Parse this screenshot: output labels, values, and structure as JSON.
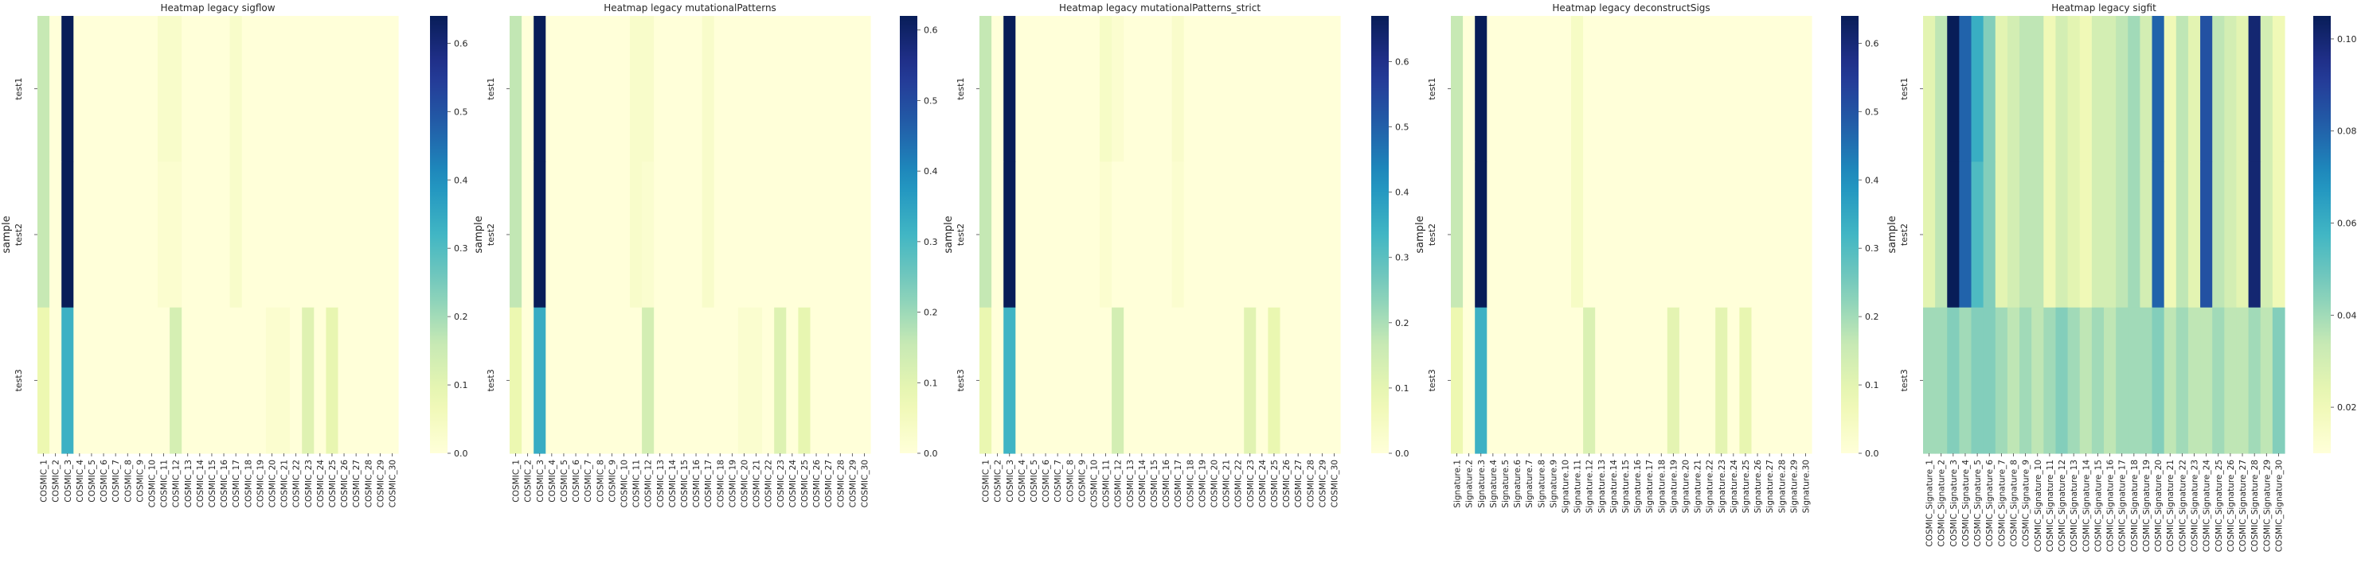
{
  "ylabel": "sample",
  "samples": [
    "test1",
    "test2",
    "test3"
  ],
  "colormap": {
    "name": "YlGnBu",
    "stops": [
      "#ffffd9",
      "#edf8b1",
      "#c7e9b4",
      "#7fcdbb",
      "#41b6c4",
      "#1d91c0",
      "#225ea8",
      "#253494",
      "#081d58"
    ]
  },
  "chart_data": [
    {
      "type": "heatmap",
      "title": "Heatmap legacy sigflow",
      "ylabel": "sample",
      "categories": [
        "COSMIC_1",
        "COSMIC_2",
        "COSMIC_3",
        "COSMIC_4",
        "COSMIC_5",
        "COSMIC_6",
        "COSMIC_7",
        "COSMIC_8",
        "COSMIC_9",
        "COSMIC_10",
        "COSMIC_11",
        "COSMIC_12",
        "COSMIC_13",
        "COSMIC_14",
        "COSMIC_15",
        "COSMIC_16",
        "COSMIC_17",
        "COSMIC_18",
        "COSMIC_19",
        "COSMIC_20",
        "COSMIC_21",
        "COSMIC_22",
        "COSMIC_23",
        "COSMIC_24",
        "COSMIC_25",
        "COSMIC_26",
        "COSMIC_27",
        "COSMIC_28",
        "COSMIC_29",
        "COSMIC_30"
      ],
      "rows": [
        "test1",
        "test2",
        "test3"
      ],
      "values": [
        [
          0.16,
          0,
          0.64,
          0,
          0,
          0,
          0,
          0,
          0,
          0,
          0.03,
          0.03,
          0,
          0,
          0,
          0,
          0.03,
          0,
          0,
          0,
          0,
          0,
          0,
          0,
          0,
          0,
          0,
          0,
          0,
          0
        ],
        [
          0.16,
          0,
          0.64,
          0,
          0,
          0,
          0,
          0,
          0,
          0,
          0.02,
          0.02,
          0,
          0,
          0,
          0,
          0.03,
          0,
          0,
          0,
          0,
          0,
          0,
          0,
          0,
          0,
          0,
          0,
          0,
          0
        ],
        [
          0.08,
          0,
          0.33,
          0,
          0,
          0,
          0,
          0,
          0,
          0,
          0,
          0.13,
          0,
          0,
          0,
          0,
          0,
          0,
          0,
          0.02,
          0.02,
          0,
          0.11,
          0,
          0.09,
          0,
          0,
          0,
          0,
          0
        ]
      ],
      "colorbar": {
        "min": 0,
        "max": 0.64,
        "ticks": [
          "0.0",
          "0.1",
          "0.2",
          "0.3",
          "0.4",
          "0.5",
          "0.6"
        ]
      }
    },
    {
      "type": "heatmap",
      "title": "Heatmap legacy mutationalPatterns",
      "ylabel": "sample",
      "categories": [
        "COSMIC_1",
        "COSMIC_2",
        "COSMIC_3",
        "COSMIC_4",
        "COSMIC_5",
        "COSMIC_6",
        "COSMIC_7",
        "COSMIC_8",
        "COSMIC_9",
        "COSMIC_10",
        "COSMIC_11",
        "COSMIC_12",
        "COSMIC_13",
        "COSMIC_14",
        "COSMIC_15",
        "COSMIC_16",
        "COSMIC_17",
        "COSMIC_18",
        "COSMIC_19",
        "COSMIC_20",
        "COSMIC_21",
        "COSMIC_22",
        "COSMIC_23",
        "COSMIC_24",
        "COSMIC_25",
        "COSMIC_26",
        "COSMIC_27",
        "COSMIC_28",
        "COSMIC_29",
        "COSMIC_30"
      ],
      "rows": [
        "test1",
        "test2",
        "test3"
      ],
      "values": [
        [
          0.16,
          0,
          0.62,
          0,
          0,
          0,
          0,
          0,
          0,
          0,
          0.03,
          0.03,
          0,
          0,
          0,
          0,
          0.03,
          0,
          0,
          0,
          0,
          0,
          0,
          0,
          0,
          0,
          0,
          0,
          0,
          0
        ],
        [
          0.16,
          0,
          0.62,
          0,
          0,
          0,
          0,
          0,
          0,
          0,
          0.03,
          0.02,
          0,
          0,
          0,
          0,
          0.03,
          0,
          0,
          0,
          0,
          0,
          0,
          0,
          0,
          0,
          0,
          0,
          0,
          0
        ],
        [
          0.08,
          0,
          0.33,
          0,
          0,
          0,
          0,
          0,
          0,
          0,
          0,
          0.13,
          0,
          0,
          0,
          0,
          0,
          0,
          0,
          0.02,
          0.02,
          0,
          0.11,
          0,
          0.09,
          0,
          0,
          0,
          0,
          0
        ]
      ],
      "colorbar": {
        "min": 0,
        "max": 0.62,
        "ticks": [
          "0.0",
          "0.1",
          "0.2",
          "0.3",
          "0.4",
          "0.5",
          "0.6"
        ]
      }
    },
    {
      "type": "heatmap",
      "title": "Heatmap legacy mutationalPatterns_strict",
      "ylabel": "sample",
      "categories": [
        "COSMIC_1",
        "COSMIC_2",
        "COSMIC_3",
        "COSMIC_4",
        "COSMIC_5",
        "COSMIC_6",
        "COSMIC_7",
        "COSMIC_8",
        "COSMIC_9",
        "COSMIC_10",
        "COSMIC_11",
        "COSMIC_12",
        "COSMIC_13",
        "COSMIC_14",
        "COSMIC_15",
        "COSMIC_16",
        "COSMIC_17",
        "COSMIC_18",
        "COSMIC_19",
        "COSMIC_20",
        "COSMIC_21",
        "COSMIC_22",
        "COSMIC_23",
        "COSMIC_24",
        "COSMIC_25",
        "COSMIC_26",
        "COSMIC_27",
        "COSMIC_28",
        "COSMIC_29",
        "COSMIC_30"
      ],
      "rows": [
        "test1",
        "test2",
        "test3"
      ],
      "values": [
        [
          0.17,
          0,
          0.67,
          0,
          0,
          0,
          0,
          0,
          0,
          0,
          0.04,
          0.02,
          0,
          0,
          0,
          0,
          0.03,
          0,
          0,
          0,
          0,
          0,
          0,
          0,
          0,
          0,
          0,
          0,
          0,
          0
        ],
        [
          0.17,
          0,
          0.67,
          0,
          0,
          0,
          0,
          0,
          0,
          0,
          0.02,
          0,
          0,
          0,
          0,
          0,
          0.02,
          0,
          0,
          0,
          0,
          0,
          0,
          0,
          0,
          0,
          0,
          0,
          0,
          0
        ],
        [
          0.09,
          0,
          0.34,
          0,
          0,
          0,
          0,
          0,
          0,
          0,
          0,
          0.14,
          0,
          0,
          0,
          0,
          0,
          0,
          0,
          0,
          0,
          0,
          0.11,
          0,
          0.09,
          0,
          0,
          0,
          0,
          0
        ]
      ],
      "colorbar": {
        "min": 0,
        "max": 0.67,
        "ticks": [
          "0.0",
          "0.1",
          "0.2",
          "0.3",
          "0.4",
          "0.5",
          "0.6"
        ]
      }
    },
    {
      "type": "heatmap",
      "title": "Heatmap legacy deconstructSigs",
      "ylabel": "sample",
      "categories": [
        "Signature.1",
        "Signature.2",
        "Signature.3",
        "Signature.4",
        "Signature.5",
        "Signature.6",
        "Signature.7",
        "Signature.8",
        "Signature.9",
        "Signature.10",
        "Signature.11",
        "Signature.12",
        "Signature.13",
        "Signature.14",
        "Signature.15",
        "Signature.16",
        "Signature.17",
        "Signature.18",
        "Signature.19",
        "Signature.20",
        "Signature.21",
        "Signature.22",
        "Signature.23",
        "Signature.24",
        "Signature.25",
        "Signature.26",
        "Signature.27",
        "Signature.28",
        "Signature.29",
        "Signature.30"
      ],
      "rows": [
        "test1",
        "test2",
        "test3"
      ],
      "values": [
        [
          0.16,
          0,
          0.64,
          0,
          0,
          0,
          0,
          0,
          0,
          0,
          0.04,
          0,
          0,
          0,
          0,
          0,
          0,
          0,
          0,
          0,
          0,
          0,
          0,
          0,
          0,
          0,
          0,
          0,
          0,
          0
        ],
        [
          0.16,
          0,
          0.64,
          0,
          0,
          0,
          0,
          0,
          0,
          0,
          0.04,
          0,
          0,
          0,
          0,
          0,
          0,
          0,
          0,
          0,
          0,
          0,
          0,
          0,
          0,
          0,
          0,
          0,
          0,
          0
        ],
        [
          0.08,
          0,
          0.33,
          0,
          0,
          0,
          0,
          0,
          0,
          0,
          0,
          0.12,
          0,
          0,
          0,
          0,
          0,
          0,
          0.1,
          0,
          0,
          0,
          0.1,
          0,
          0.09,
          0,
          0,
          0,
          0,
          0
        ]
      ],
      "colorbar": {
        "min": 0,
        "max": 0.64,
        "ticks": [
          "0.0",
          "0.1",
          "0.2",
          "0.3",
          "0.4",
          "0.5",
          "0.6"
        ]
      }
    },
    {
      "type": "heatmap",
      "title": "Heatmap legacy sigfit",
      "ylabel": "sample",
      "categories": [
        "COSMIC_Signature_1",
        "COSMIC_Signature_2",
        "COSMIC_Signature_3",
        "COSMIC_Signature_4",
        "COSMIC_Signature_5",
        "COSMIC_Signature_6",
        "COSMIC_Signature_7",
        "COSMIC_Signature_8",
        "COSMIC_Signature_9",
        "COSMIC_Signature_10",
        "COSMIC_Signature_11",
        "COSMIC_Signature_12",
        "COSMIC_Signature_13",
        "COSMIC_Signature_14",
        "COSMIC_Signature_15",
        "COSMIC_Signature_16",
        "COSMIC_Signature_17",
        "COSMIC_Signature_18",
        "COSMIC_Signature_19",
        "COSMIC_Signature_20",
        "COSMIC_Signature_21",
        "COSMIC_Signature_22",
        "COSMIC_Signature_23",
        "COSMIC_Signature_24",
        "COSMIC_Signature_25",
        "COSMIC_Signature_26",
        "COSMIC_Signature_27",
        "COSMIC_Signature_28",
        "COSMIC_Signature_29",
        "COSMIC_Signature_30"
      ],
      "rows": [
        "test1",
        "test2",
        "test3"
      ],
      "values": [
        [
          0.025,
          0.035,
          0.105,
          0.08,
          0.06,
          0.045,
          0.025,
          0.03,
          0.035,
          0.035,
          0.02,
          0.03,
          0.025,
          0.02,
          0.03,
          0.03,
          0.035,
          0.04,
          0.03,
          0.08,
          0.02,
          0.035,
          0.025,
          0.085,
          0.035,
          0.03,
          0.025,
          0.1,
          0.03,
          0.02
        ],
        [
          0.025,
          0.035,
          0.105,
          0.08,
          0.055,
          0.045,
          0.025,
          0.03,
          0.035,
          0.035,
          0.02,
          0.03,
          0.025,
          0.02,
          0.03,
          0.03,
          0.035,
          0.04,
          0.03,
          0.08,
          0.02,
          0.035,
          0.025,
          0.085,
          0.035,
          0.03,
          0.025,
          0.1,
          0.03,
          0.02
        ],
        [
          0.04,
          0.04,
          0.045,
          0.04,
          0.045,
          0.045,
          0.04,
          0.035,
          0.04,
          0.035,
          0.04,
          0.045,
          0.04,
          0.035,
          0.04,
          0.035,
          0.04,
          0.04,
          0.04,
          0.045,
          0.035,
          0.04,
          0.035,
          0.035,
          0.04,
          0.035,
          0.035,
          0.04,
          0.035,
          0.045
        ]
      ],
      "colorbar": {
        "min": 0.01,
        "max": 0.105,
        "ticks": [
          "0.02",
          "0.04",
          "0.06",
          "0.08",
          "0.10"
        ]
      }
    }
  ]
}
